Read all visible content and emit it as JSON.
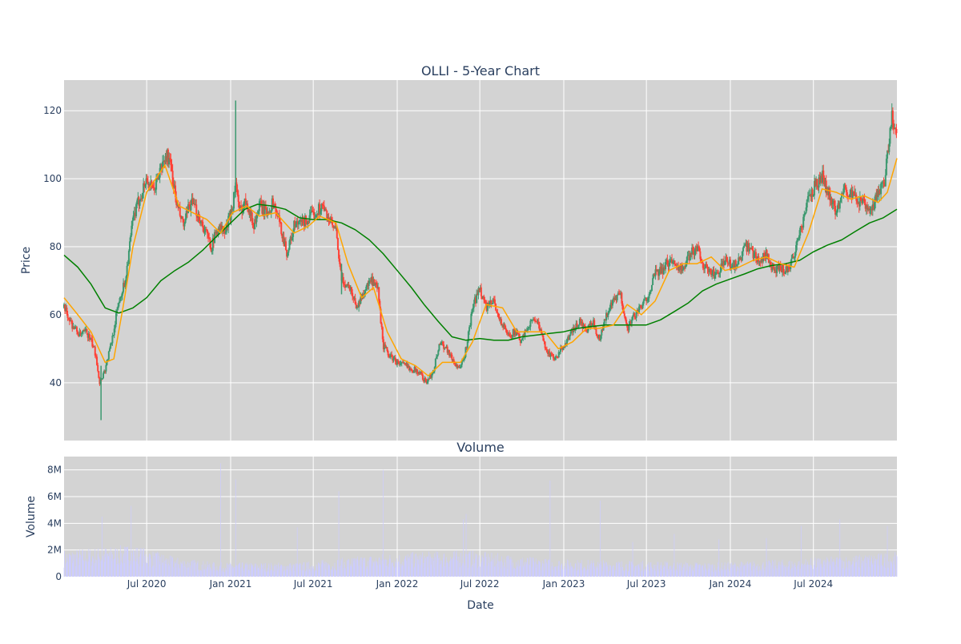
{
  "chart_data": [
    {
      "type": "candlestick",
      "title": "OLLI - 5-Year Chart",
      "xlabel": "",
      "ylabel": "Price",
      "ylim": [
        23,
        129
      ],
      "xlim": [
        "2020-01-02",
        "2024-12-31"
      ],
      "grid": true,
      "y_ticks": [
        40,
        60,
        80,
        100,
        120
      ],
      "x_ticks": [
        "2020-07-01",
        "2021-01-01",
        "2021-07-01",
        "2022-01-01",
        "2022-07-01",
        "2023-01-01",
        "2023-07-01",
        "2024-01-01",
        "2024-07-01"
      ],
      "colors": {
        "background": "#d3d3d3",
        "grid": "#ffffff",
        "increasing": "#3d9970",
        "decreasing": "#ff4136",
        "ma_short": "#ffa500",
        "ma_long": "#008000"
      },
      "close_path": [
        [
          "2020-01-02",
          62
        ],
        [
          "2020-01-20",
          57
        ],
        [
          "2020-02-05",
          54
        ],
        [
          "2020-02-20",
          55
        ],
        [
          "2020-03-05",
          51
        ],
        [
          "2020-03-12",
          48
        ],
        [
          "2020-03-20",
          40
        ],
        [
          "2020-04-01",
          44
        ],
        [
          "2020-04-15",
          52
        ],
        [
          "2020-05-01",
          64
        ],
        [
          "2020-05-15",
          70
        ],
        [
          "2020-06-01",
          88
        ],
        [
          "2020-06-15",
          94
        ],
        [
          "2020-07-01",
          100
        ],
        [
          "2020-07-15",
          96
        ],
        [
          "2020-08-01",
          103
        ],
        [
          "2020-08-15",
          107
        ],
        [
          "2020-08-25",
          102
        ],
        [
          "2020-09-05",
          92
        ],
        [
          "2020-09-20",
          86
        ],
        [
          "2020-10-05",
          93
        ],
        [
          "2020-10-20",
          90
        ],
        [
          "2020-11-05",
          85
        ],
        [
          "2020-11-20",
          80
        ],
        [
          "2020-12-05",
          86
        ],
        [
          "2020-12-20",
          84
        ],
        [
          "2021-01-05",
          92
        ],
        [
          "2021-01-12",
          99
        ],
        [
          "2021-01-20",
          90
        ],
        [
          "2021-02-05",
          94
        ],
        [
          "2021-02-20",
          86
        ],
        [
          "2021-03-05",
          92
        ],
        [
          "2021-03-20",
          90
        ],
        [
          "2021-04-05",
          93
        ],
        [
          "2021-04-20",
          86
        ],
        [
          "2021-05-05",
          78
        ],
        [
          "2021-05-20",
          86
        ],
        [
          "2021-06-05",
          87
        ],
        [
          "2021-06-20",
          88
        ],
        [
          "2021-07-05",
          90
        ],
        [
          "2021-07-20",
          92
        ],
        [
          "2021-08-05",
          88
        ],
        [
          "2021-08-20",
          84
        ],
        [
          "2021-09-01",
          70
        ],
        [
          "2021-09-20",
          68
        ],
        [
          "2021-10-05",
          62
        ],
        [
          "2021-10-20",
          67
        ],
        [
          "2021-11-05",
          70
        ],
        [
          "2021-11-20",
          67
        ],
        [
          "2021-12-01",
          51
        ],
        [
          "2021-12-15",
          48
        ],
        [
          "2022-01-01",
          46
        ],
        [
          "2022-01-20",
          45
        ],
        [
          "2022-02-05",
          44
        ],
        [
          "2022-02-20",
          43
        ],
        [
          "2022-03-05",
          40
        ],
        [
          "2022-03-20",
          43
        ],
        [
          "2022-04-05",
          52
        ],
        [
          "2022-04-20",
          50
        ],
        [
          "2022-05-05",
          46
        ],
        [
          "2022-05-20",
          44
        ],
        [
          "2022-06-01",
          50
        ],
        [
          "2022-06-15",
          62
        ],
        [
          "2022-07-01",
          68
        ],
        [
          "2022-07-15",
          62
        ],
        [
          "2022-08-01",
          64
        ],
        [
          "2022-08-15",
          58
        ],
        [
          "2022-09-01",
          54
        ],
        [
          "2022-09-15",
          55
        ],
        [
          "2022-10-01",
          52
        ],
        [
          "2022-10-15",
          57
        ],
        [
          "2022-11-01",
          59
        ],
        [
          "2022-11-15",
          53
        ],
        [
          "2022-12-01",
          48
        ],
        [
          "2022-12-15",
          47
        ],
        [
          "2023-01-05",
          52
        ],
        [
          "2023-01-20",
          55
        ],
        [
          "2023-02-05",
          58
        ],
        [
          "2023-02-20",
          55
        ],
        [
          "2023-03-05",
          58
        ],
        [
          "2023-03-20",
          53
        ],
        [
          "2023-04-05",
          60
        ],
        [
          "2023-04-20",
          64
        ],
        [
          "2023-05-05",
          66
        ],
        [
          "2023-05-20",
          56
        ],
        [
          "2023-06-05",
          60
        ],
        [
          "2023-06-20",
          62
        ],
        [
          "2023-07-05",
          66
        ],
        [
          "2023-07-20",
          72
        ],
        [
          "2023-08-05",
          73
        ],
        [
          "2023-08-20",
          76
        ],
        [
          "2023-09-05",
          75
        ],
        [
          "2023-09-20",
          73
        ],
        [
          "2023-10-05",
          78
        ],
        [
          "2023-10-20",
          80
        ],
        [
          "2023-11-05",
          74
        ],
        [
          "2023-11-20",
          72
        ],
        [
          "2023-12-05",
          72
        ],
        [
          "2023-12-20",
          76
        ],
        [
          "2024-01-05",
          74
        ],
        [
          "2024-01-20",
          76
        ],
        [
          "2024-02-05",
          80
        ],
        [
          "2024-02-20",
          78
        ],
        [
          "2024-03-05",
          76
        ],
        [
          "2024-03-20",
          78
        ],
        [
          "2024-04-05",
          72
        ],
        [
          "2024-04-20",
          74
        ],
        [
          "2024-05-05",
          73
        ],
        [
          "2024-05-20",
          78
        ],
        [
          "2024-06-05",
          86
        ],
        [
          "2024-06-20",
          94
        ],
        [
          "2024-07-05",
          98
        ],
        [
          "2024-07-20",
          101
        ],
        [
          "2024-08-05",
          95
        ],
        [
          "2024-08-20",
          90
        ],
        [
          "2024-09-05",
          98
        ],
        [
          "2024-09-20",
          95
        ],
        [
          "2024-10-05",
          94
        ],
        [
          "2024-10-20",
          92
        ],
        [
          "2024-11-05",
          90
        ],
        [
          "2024-11-20",
          96
        ],
        [
          "2024-12-05",
          100
        ],
        [
          "2024-12-12",
          110
        ],
        [
          "2024-12-20",
          118
        ],
        [
          "2024-12-31",
          112
        ]
      ],
      "ma_short_path": [
        [
          "2020-01-02",
          65
        ],
        [
          "2020-02-01",
          60
        ],
        [
          "2020-03-01",
          55
        ],
        [
          "2020-04-01",
          46
        ],
        [
          "2020-04-20",
          47
        ],
        [
          "2020-05-10",
          62
        ],
        [
          "2020-06-01",
          80
        ],
        [
          "2020-07-01",
          96
        ],
        [
          "2020-08-10",
          104
        ],
        [
          "2020-09-10",
          92
        ],
        [
          "2020-10-10",
          90
        ],
        [
          "2020-11-10",
          88
        ],
        [
          "2020-12-10",
          84
        ],
        [
          "2021-01-05",
          90
        ],
        [
          "2021-02-05",
          92
        ],
        [
          "2021-03-05",
          89
        ],
        [
          "2021-04-10",
          90
        ],
        [
          "2021-05-20",
          84
        ],
        [
          "2021-06-20",
          86
        ],
        [
          "2021-07-15",
          89
        ],
        [
          "2021-08-20",
          87
        ],
        [
          "2021-09-15",
          75
        ],
        [
          "2021-10-15",
          65
        ],
        [
          "2021-11-10",
          68
        ],
        [
          "2021-12-10",
          55
        ],
        [
          "2022-01-10",
          47
        ],
        [
          "2022-02-10",
          45
        ],
        [
          "2022-03-10",
          42
        ],
        [
          "2022-04-10",
          46
        ],
        [
          "2022-05-20",
          46
        ],
        [
          "2022-06-15",
          52
        ],
        [
          "2022-07-15",
          63
        ],
        [
          "2022-08-20",
          62
        ],
        [
          "2022-09-20",
          55
        ],
        [
          "2022-10-20",
          55
        ],
        [
          "2022-11-20",
          55
        ],
        [
          "2022-12-20",
          50
        ],
        [
          "2023-01-20",
          52
        ],
        [
          "2023-02-20",
          56
        ],
        [
          "2023-03-20",
          56
        ],
        [
          "2023-04-20",
          57
        ],
        [
          "2023-05-20",
          63
        ],
        [
          "2023-06-20",
          60
        ],
        [
          "2023-07-20",
          64
        ],
        [
          "2023-08-20",
          73
        ],
        [
          "2023-09-20",
          75
        ],
        [
          "2023-10-20",
          75
        ],
        [
          "2023-11-20",
          77
        ],
        [
          "2023-12-20",
          73
        ],
        [
          "2024-01-20",
          74
        ],
        [
          "2024-02-20",
          76
        ],
        [
          "2024-03-20",
          77
        ],
        [
          "2024-04-20",
          75
        ],
        [
          "2024-05-20",
          74
        ],
        [
          "2024-06-20",
          84
        ],
        [
          "2024-07-20",
          97
        ],
        [
          "2024-08-20",
          96
        ],
        [
          "2024-09-20",
          94
        ],
        [
          "2024-10-20",
          95
        ],
        [
          "2024-11-20",
          93
        ],
        [
          "2024-12-10",
          96
        ],
        [
          "2024-12-31",
          106
        ]
      ],
      "ma_long_path": [
        [
          "2020-01-02",
          77.5
        ],
        [
          "2020-02-01",
          74
        ],
        [
          "2020-03-01",
          69
        ],
        [
          "2020-04-01",
          62
        ],
        [
          "2020-05-01",
          60.5
        ],
        [
          "2020-06-01",
          62
        ],
        [
          "2020-07-01",
          65
        ],
        [
          "2020-08-01",
          70
        ],
        [
          "2020-09-01",
          73
        ],
        [
          "2020-10-01",
          75.5
        ],
        [
          "2020-11-01",
          79
        ],
        [
          "2020-12-01",
          83
        ],
        [
          "2021-01-01",
          87
        ],
        [
          "2021-02-01",
          91
        ],
        [
          "2021-03-01",
          92.5
        ],
        [
          "2021-04-01",
          92
        ],
        [
          "2021-05-01",
          91
        ],
        [
          "2021-06-01",
          88.5
        ],
        [
          "2021-07-01",
          88
        ],
        [
          "2021-08-01",
          88
        ],
        [
          "2021-09-01",
          87
        ],
        [
          "2021-10-01",
          85
        ],
        [
          "2021-11-01",
          82
        ],
        [
          "2021-12-01",
          78
        ],
        [
          "2022-01-01",
          73
        ],
        [
          "2022-02-01",
          68
        ],
        [
          "2022-03-01",
          63
        ],
        [
          "2022-04-01",
          58
        ],
        [
          "2022-05-01",
          53.5
        ],
        [
          "2022-06-01",
          52.5
        ],
        [
          "2022-07-01",
          53
        ],
        [
          "2022-08-01",
          52.5
        ],
        [
          "2022-09-01",
          52.5
        ],
        [
          "2022-10-01",
          53.5
        ],
        [
          "2022-11-01",
          54
        ],
        [
          "2022-12-01",
          54.5
        ],
        [
          "2023-01-01",
          55
        ],
        [
          "2023-02-01",
          56
        ],
        [
          "2023-03-01",
          56.5
        ],
        [
          "2023-04-01",
          57
        ],
        [
          "2023-05-01",
          57
        ],
        [
          "2023-06-01",
          57
        ],
        [
          "2023-07-01",
          57
        ],
        [
          "2023-08-01",
          58.5
        ],
        [
          "2023-09-01",
          61
        ],
        [
          "2023-10-01",
          63.5
        ],
        [
          "2023-11-01",
          67
        ],
        [
          "2023-12-01",
          69
        ],
        [
          "2024-01-01",
          70.5
        ],
        [
          "2024-02-01",
          72
        ],
        [
          "2024-03-01",
          73.5
        ],
        [
          "2024-04-01",
          74.5
        ],
        [
          "2024-05-01",
          75
        ],
        [
          "2024-06-01",
          76
        ],
        [
          "2024-07-01",
          78.5
        ],
        [
          "2024-08-01",
          80.5
        ],
        [
          "2024-09-01",
          82
        ],
        [
          "2024-10-01",
          84.5
        ],
        [
          "2024-11-01",
          87
        ],
        [
          "2024-12-01",
          88.5
        ],
        [
          "2024-12-31",
          91
        ]
      ],
      "spikes": [
        {
          "date": "2020-03-23",
          "high": 45,
          "low": 29
        },
        {
          "date": "2021-01-12",
          "high": 123,
          "low": 96
        },
        {
          "date": "2021-09-01",
          "high": 75,
          "low": 66
        }
      ]
    },
    {
      "type": "bar",
      "title": "Volume",
      "xlabel": "Date",
      "ylabel": "Volume",
      "ylim": [
        0,
        9000000
      ],
      "xlim": [
        "2020-01-02",
        "2024-12-31"
      ],
      "y_ticks": [
        0,
        2000000,
        4000000,
        6000000,
        8000000
      ],
      "y_tick_labels": [
        "0",
        "2M",
        "4M",
        "6M",
        "8M"
      ],
      "x_ticks": [
        "2020-07-01",
        "2021-01-01",
        "2021-07-01",
        "2022-01-01",
        "2022-07-01",
        "2023-01-01",
        "2023-07-01",
        "2024-01-01",
        "2024-07-01"
      ],
      "x_tick_labels": [
        "Jul 2020",
        "Jan 2021",
        "Jul 2021",
        "Jan 2022",
        "Jul 2022",
        "Jan 2023",
        "Jul 2023",
        "Jan 2024",
        "Jul 2024"
      ],
      "bar_color": "#ccccff",
      "base_volume": [
        [
          "2020-01-02",
          1500000
        ],
        [
          "2020-06-01",
          1800000
        ],
        [
          "2020-09-01",
          1100000
        ],
        [
          "2020-12-01",
          800000
        ],
        [
          "2021-06-01",
          800000
        ],
        [
          "2021-12-01",
          1300000
        ],
        [
          "2022-06-01",
          1500000
        ],
        [
          "2022-12-01",
          1000000
        ],
        [
          "2023-06-01",
          900000
        ],
        [
          "2023-12-01",
          800000
        ],
        [
          "2024-06-01",
          1000000
        ],
        [
          "2024-12-31",
          1400000
        ]
      ],
      "volume_spikes": [
        [
          "2020-03-25",
          4500000
        ],
        [
          "2020-05-28",
          5300000
        ],
        [
          "2020-12-10",
          8500000
        ],
        [
          "2021-01-12",
          7300000
        ],
        [
          "2021-05-27",
          3700000
        ],
        [
          "2021-08-26",
          6400000
        ],
        [
          "2021-12-01",
          8000000
        ],
        [
          "2022-03-20",
          4700000
        ],
        [
          "2022-05-26",
          4300000
        ],
        [
          "2022-06-01",
          4700000
        ],
        [
          "2022-12-02",
          7200000
        ],
        [
          "2023-03-22",
          5700000
        ],
        [
          "2023-06-01",
          2600000
        ],
        [
          "2023-08-31",
          3200000
        ],
        [
          "2023-12-07",
          2800000
        ],
        [
          "2024-03-20",
          2900000
        ],
        [
          "2024-06-04",
          3800000
        ],
        [
          "2024-08-28",
          4300000
        ],
        [
          "2024-12-10",
          3800000
        ]
      ]
    }
  ]
}
